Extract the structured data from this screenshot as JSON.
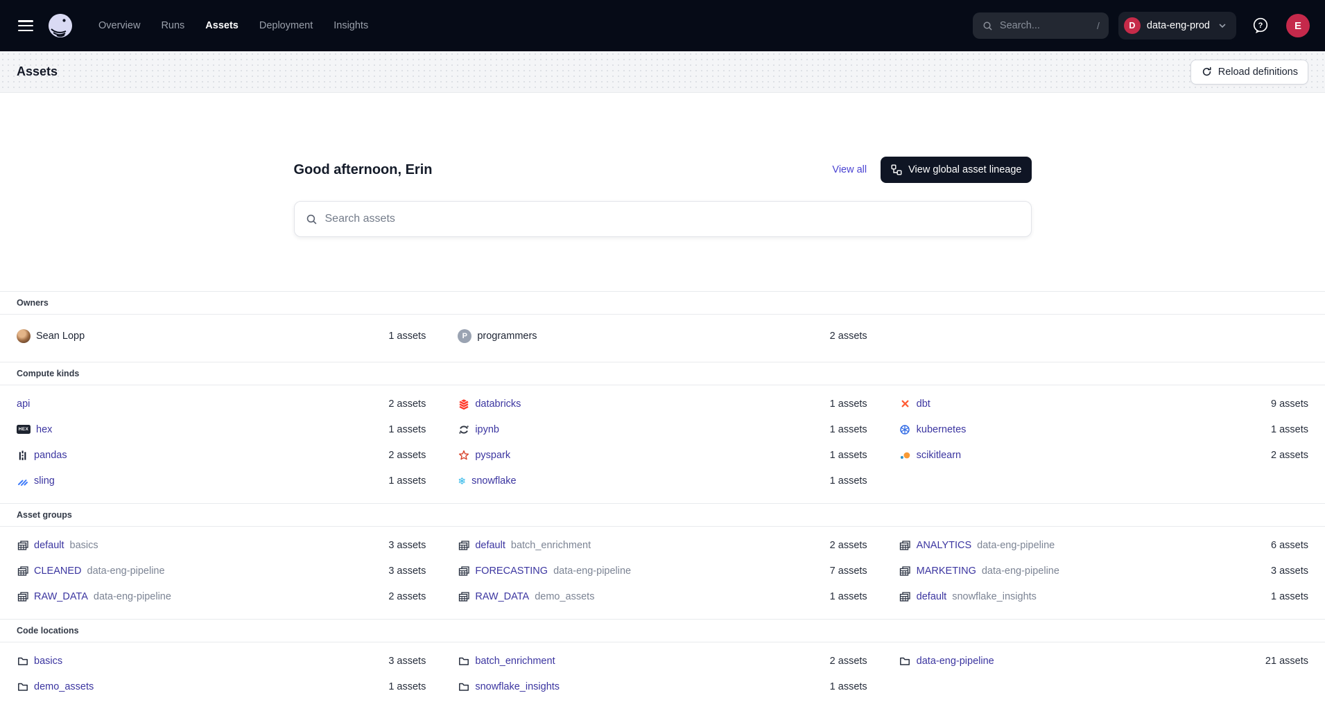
{
  "topnav": {
    "brand": "dagster",
    "links": [
      {
        "label": "Overview",
        "active": false
      },
      {
        "label": "Runs",
        "active": false
      },
      {
        "label": "Assets",
        "active": true
      },
      {
        "label": "Deployment",
        "active": false
      },
      {
        "label": "Insights",
        "active": false
      }
    ],
    "search": {
      "placeholder": "Search...",
      "shortcut": "/"
    },
    "deployment": {
      "initial": "D",
      "name": "data-eng-prod"
    },
    "user_initial": "E",
    "colors": {
      "badge_red": "#C62B49",
      "nav_bg": "#060B17"
    }
  },
  "page_header": {
    "title": "Assets",
    "reload_label": "Reload definitions"
  },
  "hero": {
    "greeting": "Good afternoon, Erin",
    "view_all_label": "View all",
    "lineage_button_label": "View global asset lineage",
    "search_placeholder": "Search assets"
  },
  "sections": [
    {
      "title": "Owners",
      "style": "owner",
      "items": [
        {
          "icon": "user-photo",
          "label": "Sean Lopp",
          "count": "1 assets",
          "link": false
        },
        {
          "icon": "team-badge",
          "label": "programmers",
          "count": "2 assets",
          "link": false
        }
      ]
    },
    {
      "title": "Compute kinds",
      "style": "default",
      "items": [
        {
          "icon": "none",
          "label": "api",
          "count": "2 assets",
          "link": true
        },
        {
          "icon": "databricks",
          "label": "databricks",
          "count": "1 assets",
          "link": true
        },
        {
          "icon": "dbt",
          "label": "dbt",
          "count": "9 assets",
          "link": true
        },
        {
          "icon": "hex",
          "label": "hex",
          "count": "1 assets",
          "link": true
        },
        {
          "icon": "ipynb",
          "label": "ipynb",
          "count": "1 assets",
          "link": true
        },
        {
          "icon": "kubernetes",
          "label": "kubernetes",
          "count": "1 assets",
          "link": true
        },
        {
          "icon": "pandas",
          "label": "pandas",
          "count": "2 assets",
          "link": true
        },
        {
          "icon": "pyspark",
          "label": "pyspark",
          "count": "1 assets",
          "link": true
        },
        {
          "icon": "scikitlearn",
          "label": "scikitlearn",
          "count": "2 assets",
          "link": true
        },
        {
          "icon": "sling",
          "label": "sling",
          "count": "1 assets",
          "link": true
        },
        {
          "icon": "snowflake",
          "label": "snowflake",
          "count": "1 assets",
          "link": true
        }
      ]
    },
    {
      "title": "Asset groups",
      "style": "default",
      "items": [
        {
          "icon": "asset-group",
          "label": "default",
          "suffix": "basics",
          "count": "3 assets",
          "link": true
        },
        {
          "icon": "asset-group",
          "label": "default",
          "suffix": "batch_enrichment",
          "count": "2 assets",
          "link": true
        },
        {
          "icon": "asset-group",
          "label": "ANALYTICS",
          "suffix": "data-eng-pipeline",
          "count": "6 assets",
          "link": true
        },
        {
          "icon": "asset-group",
          "label": "CLEANED",
          "suffix": "data-eng-pipeline",
          "count": "3 assets",
          "link": true
        },
        {
          "icon": "asset-group",
          "label": "FORECASTING",
          "suffix": "data-eng-pipeline",
          "count": "7 assets",
          "link": true
        },
        {
          "icon": "asset-group",
          "label": "MARKETING",
          "suffix": "data-eng-pipeline",
          "count": "3 assets",
          "link": true
        },
        {
          "icon": "asset-group",
          "label": "RAW_DATA",
          "suffix": "data-eng-pipeline",
          "count": "2 assets",
          "link": true
        },
        {
          "icon": "asset-group",
          "label": "RAW_DATA",
          "suffix": "demo_assets",
          "count": "1 assets",
          "link": true
        },
        {
          "icon": "asset-group",
          "label": "default",
          "suffix": "snowflake_insights",
          "count": "1 assets",
          "link": true
        }
      ]
    },
    {
      "title": "Code locations",
      "style": "default",
      "items": [
        {
          "icon": "folder",
          "label": "basics",
          "count": "3 assets",
          "link": true
        },
        {
          "icon": "folder",
          "label": "batch_enrichment",
          "count": "2 assets",
          "link": true
        },
        {
          "icon": "folder",
          "label": "data-eng-pipeline",
          "count": "21 assets",
          "link": true
        },
        {
          "icon": "folder",
          "label": "demo_assets",
          "count": "1 assets",
          "link": true
        },
        {
          "icon": "folder",
          "label": "snowflake_insights",
          "count": "1 assets",
          "link": true
        }
      ]
    }
  ]
}
